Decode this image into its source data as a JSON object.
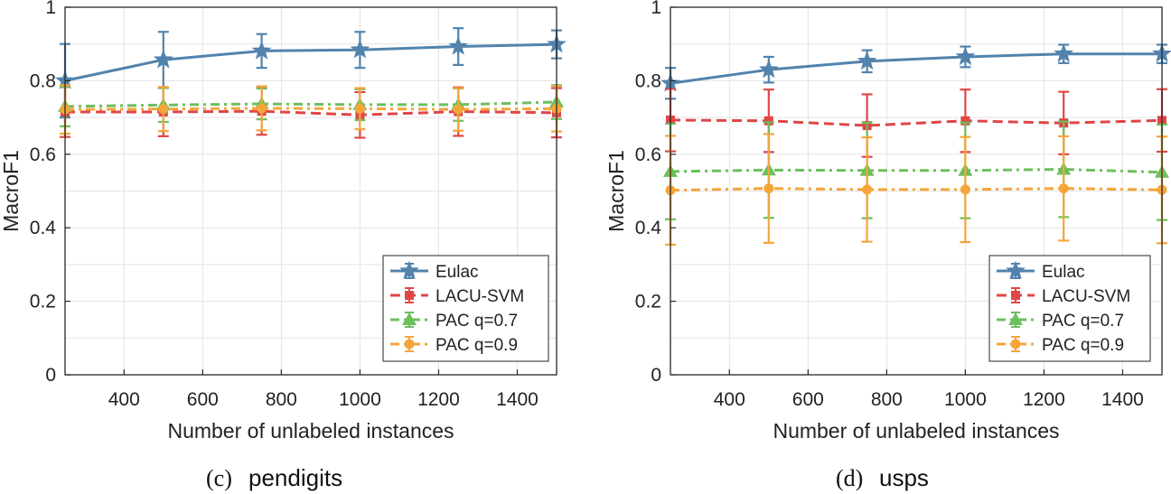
{
  "figure_captions": [
    {
      "letter": "(c)",
      "name": "pendigits"
    },
    {
      "letter": "(d)",
      "name": "usps"
    }
  ],
  "series_styles": [
    {
      "name": "Eulac",
      "color": "#5183ad",
      "dash": "solid",
      "marker": "star"
    },
    {
      "name": "LACU-SVM",
      "color": "#e04646",
      "dash": "dashed",
      "marker": "square"
    },
    {
      "name": "PAC q=0.7",
      "color": "#6cbf5c",
      "dash": "dashdot",
      "marker": "triangle"
    },
    {
      "name": "PAC q=0.9",
      "color": "#f5a53a",
      "dash": "dashdot",
      "marker": "circle"
    }
  ],
  "chart_data": [
    {
      "type": "line",
      "title": "pendigits",
      "xlabel": "Number of unlabeled instances",
      "ylabel": "MacroF1",
      "xlim": [
        250,
        1500
      ],
      "ylim": [
        0,
        1
      ],
      "xticks": [
        400,
        600,
        800,
        1000,
        1200,
        1400
      ],
      "yticks": [
        0,
        0.2,
        0.4,
        0.6,
        0.8,
        1
      ],
      "yticklabels": [
        "0",
        "0.2",
        "0.4",
        "0.6",
        "0.8",
        "1"
      ],
      "grid": true,
      "legend_position": "bottom-right",
      "x": [
        250,
        500,
        750,
        1000,
        1250,
        1500
      ],
      "series": [
        {
          "name": "Eulac",
          "values": [
            0.8,
            0.857,
            0.881,
            0.884,
            0.893,
            0.899
          ],
          "error": [
            0.1,
            0.076,
            0.046,
            0.049,
            0.05,
            0.038
          ]
        },
        {
          "name": "LACU-SVM",
          "values": [
            0.715,
            0.715,
            0.717,
            0.707,
            0.716,
            0.713
          ],
          "error": [
            0.068,
            0.066,
            0.064,
            0.062,
            0.066,
            0.067
          ]
        },
        {
          "name": "PAC q=0.7",
          "values": [
            0.73,
            0.734,
            0.737,
            0.735,
            0.735,
            0.742
          ],
          "error": [
            0.054,
            0.046,
            0.042,
            0.042,
            0.044,
            0.046
          ]
        },
        {
          "name": "PAC q=0.9",
          "values": [
            0.722,
            0.723,
            0.725,
            0.724,
            0.722,
            0.724
          ],
          "error": [
            0.066,
            0.06,
            0.06,
            0.056,
            0.058,
            0.062
          ]
        }
      ]
    },
    {
      "type": "line",
      "title": "usps",
      "xlabel": "Number of unlabeled instances",
      "ylabel": "MacroF1",
      "xlim": [
        250,
        1500
      ],
      "ylim": [
        0,
        1
      ],
      "xticks": [
        400,
        600,
        800,
        1000,
        1200,
        1400
      ],
      "yticks": [
        0,
        0.2,
        0.4,
        0.6,
        0.8,
        1
      ],
      "yticklabels": [
        "0",
        "0.2",
        "0.4",
        "0.6",
        "0.8",
        "1"
      ],
      "grid": true,
      "legend_position": "bottom-right",
      "x": [
        250,
        500,
        750,
        1000,
        1250,
        1500
      ],
      "series": [
        {
          "name": "Eulac",
          "values": [
            0.793,
            0.83,
            0.853,
            0.865,
            0.873,
            0.873
          ],
          "error": [
            0.042,
            0.035,
            0.03,
            0.028,
            0.025,
            0.025
          ]
        },
        {
          "name": "LACU-SVM",
          "values": [
            0.693,
            0.691,
            0.678,
            0.691,
            0.685,
            0.692
          ],
          "error": [
            0.085,
            0.085,
            0.085,
            0.085,
            0.085,
            0.085
          ]
        },
        {
          "name": "PAC q=0.7",
          "values": [
            0.553,
            0.557,
            0.556,
            0.556,
            0.559,
            0.551
          ],
          "error": [
            0.13,
            0.13,
            0.13,
            0.13,
            0.13,
            0.13
          ]
        },
        {
          "name": "PAC q=0.9",
          "values": [
            0.502,
            0.507,
            0.504,
            0.504,
            0.507,
            0.503
          ],
          "error": [
            0.148,
            0.148,
            0.142,
            0.143,
            0.142,
            0.145
          ]
        }
      ]
    }
  ]
}
